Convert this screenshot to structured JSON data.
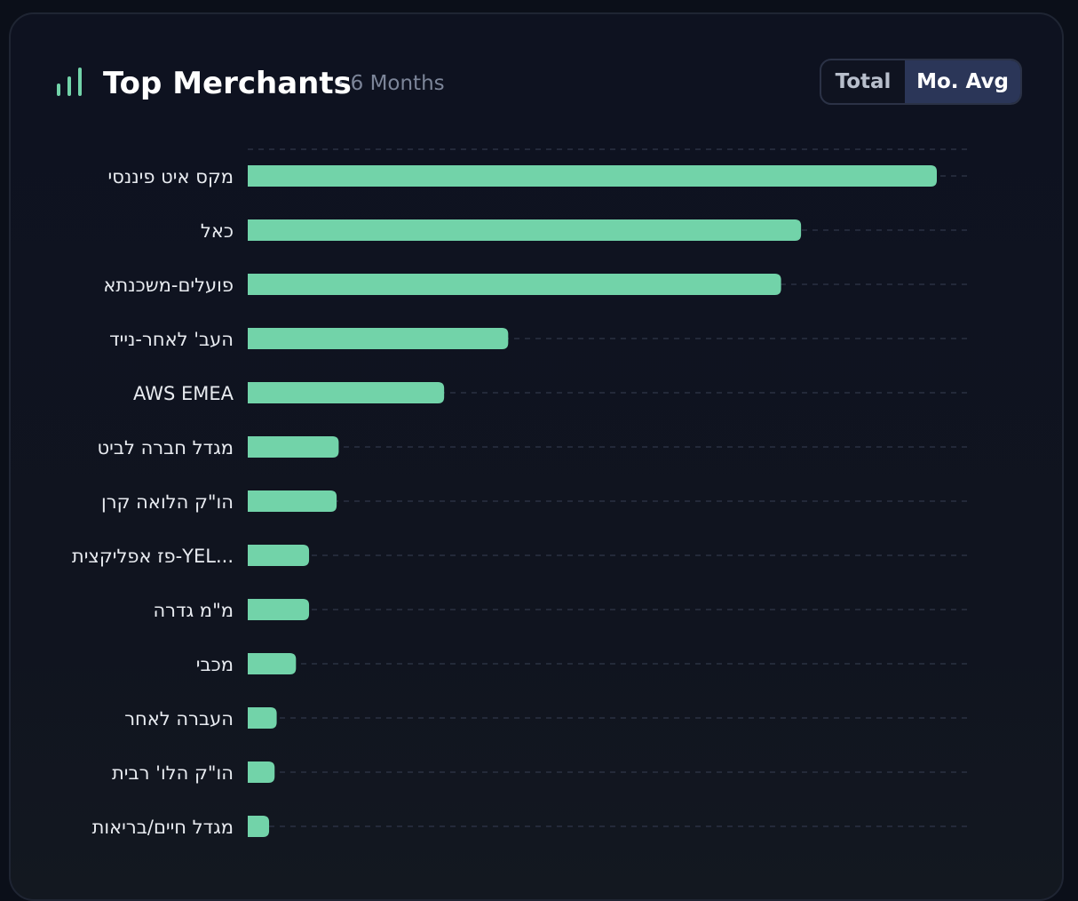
{
  "header": {
    "title": "Top Merchants",
    "subtitle": "· 6 Months"
  },
  "toggle": {
    "options": [
      "Total",
      "Mo. Avg"
    ],
    "selected": "Mo. Avg"
  },
  "colors": {
    "bar": "#72d3a9",
    "accent": "#72d3a9",
    "grid": "#2a3142",
    "text": "#e8ebf0",
    "toggle_active": "#2b3658"
  },
  "chart_data": {
    "type": "bar",
    "orientation": "horizontal",
    "categories": [
      "מקס איט פיננסי",
      "כאל",
      "פועלים-משכנתא",
      "העב' לאחר-נייד",
      "AWS EMEA",
      "מגדל חברה לביט",
      "הו\"ק הלואה קרן",
      "פז אפליקצית-YEL...",
      "מ\"מ גדרה",
      "מכבי",
      "העברה לאחר",
      "הו\"ק הלו' רבית",
      "מגדל חיים/בריאות"
    ],
    "values": [
      100,
      80.3,
      77.4,
      37.8,
      28.5,
      13.2,
      12.9,
      8.9,
      8.9,
      7.0,
      4.2,
      3.9,
      3.1
    ],
    "title": "",
    "xlabel": "",
    "ylabel": "",
    "xlim": [
      0,
      105
    ],
    "grid": true
  }
}
